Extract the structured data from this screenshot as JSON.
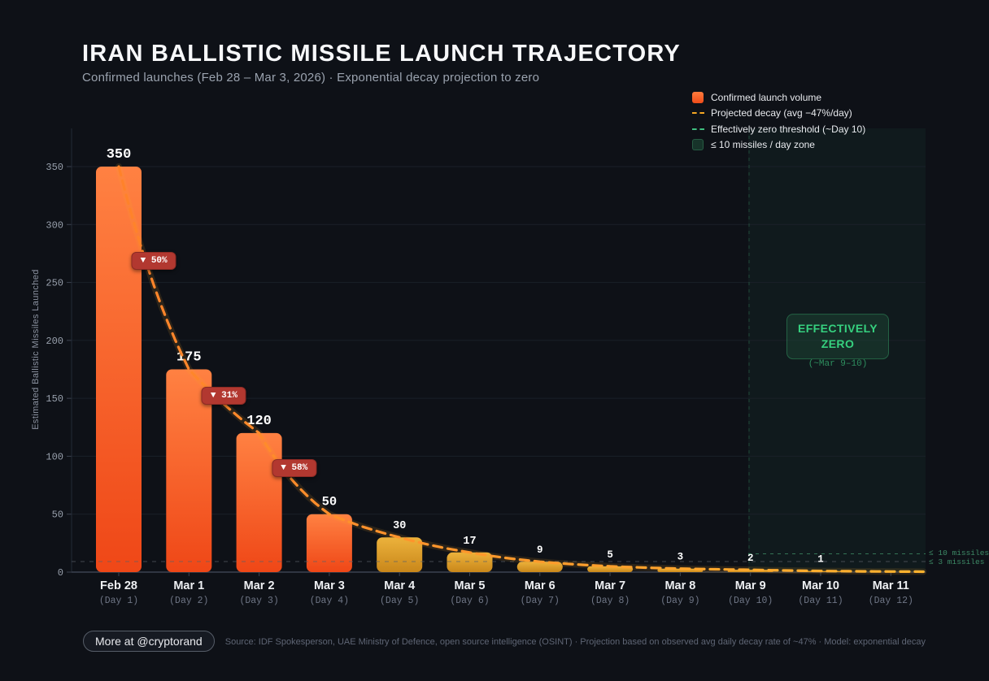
{
  "header": {
    "title": "IRAN BALLISTIC MISSILE LAUNCH TRAJECTORY",
    "subtitle": "Confirmed launches (Feb 28 – Mar 3, 2026) · Exponential decay projection to zero"
  },
  "colors": {
    "background": "#0e1117",
    "confirmed_bar_top": "#ff8142",
    "confirmed_bar_bottom": "#ef4717",
    "projected_bar_top": "#ecb23c",
    "projected_bar_bottom": "#c9871a",
    "projection_curve": "#f7a825",
    "decay_badge_red": "#b23830",
    "zero_green": "#36d17f",
    "zone_fill": "rgba(32,94,66,0.13)",
    "grid": "#1a2029",
    "axis": "#3c4350"
  },
  "legend": {
    "items": [
      {
        "swatch": "confirmed-bar",
        "label": "Confirmed launch volume"
      },
      {
        "swatch": "projected-dash",
        "label": "Projected decay (avg −47%/day)"
      },
      {
        "swatch": "zero-dash",
        "label": "Effectively zero threshold (~Day 10)"
      },
      {
        "swatch": "zone-square",
        "label": "≤ 10 missiles / day zone"
      }
    ]
  },
  "chart_data": {
    "type": "bar",
    "title": "IRAN BALLISTIC MISSILE LAUNCH TRAJECTORY",
    "categories": [
      "Feb 28",
      "Mar 1",
      "Mar 2",
      "Mar 3",
      "Mar 4",
      "Mar 5",
      "Mar 6",
      "Mar 7",
      "Mar 8",
      "Mar 9",
      "Mar 10",
      "Mar 11"
    ],
    "category_sublabels": [
      "(Day 1)",
      "(Day 2)",
      "(Day 3)",
      "(Day 4)",
      "(Day 5)",
      "(Day 6)",
      "(Day 7)",
      "(Day 8)",
      "(Day 9)",
      "(Day 10)",
      "(Day 11)",
      "(Day 12)"
    ],
    "values": [
      350,
      175,
      120,
      50,
      30,
      17,
      9,
      5,
      3,
      2,
      1,
      0
    ],
    "value_labels": [
      "350",
      "175",
      "120",
      "50",
      "30",
      "17",
      "9",
      "5",
      "3",
      "2",
      "1",
      ""
    ],
    "bar_status": [
      "confirmed",
      "confirmed",
      "confirmed",
      "confirmed",
      "projected",
      "projected",
      "projected",
      "projected",
      "projected",
      "projected",
      "projected",
      "projected"
    ],
    "series": [
      {
        "name": "Confirmed launch volume",
        "values": [
          350,
          175,
          120,
          50,
          null,
          null,
          null,
          null,
          null,
          null,
          null,
          null
        ]
      },
      {
        "name": "Projected decay (avg −47%/day)",
        "values": [
          350,
          175,
          120,
          50,
          30,
          17,
          9,
          5,
          3,
          2,
          1,
          0
        ]
      }
    ],
    "decay_badges": [
      {
        "label": "▼ 50%",
        "between_days": [
          1,
          2
        ]
      },
      {
        "label": "▼ 31%",
        "between_days": [
          2,
          3
        ]
      },
      {
        "label": "▼ 58%",
        "between_days": [
          3,
          4
        ]
      }
    ],
    "thresholds": [
      {
        "label": "≤ 10 missiles",
        "value": 10
      },
      {
        "label": "≤ 3 missiles",
        "value": 3
      }
    ],
    "zone": {
      "start_category": "Mar 9",
      "label_line1": "EFFECTIVELY",
      "label_line2": "ZERO",
      "sublabel": "(~Mar 9–10)"
    },
    "ylabel": "Estimated Ballistic Missiles Launched",
    "xlabel": "",
    "yticks": [
      0,
      50,
      100,
      150,
      200,
      250,
      300,
      350
    ],
    "ylim": [
      0,
      383
    ],
    "grid": "horizontal-only",
    "legend_position": "top-right"
  },
  "footer": {
    "cta": "More at @cryptorand",
    "source": "Source: IDF Spokesperson, UAE Ministry of Defence, open source intelligence (OSINT) · Projection based on observed avg daily decay rate of ~47% · Model: exponential decay"
  }
}
